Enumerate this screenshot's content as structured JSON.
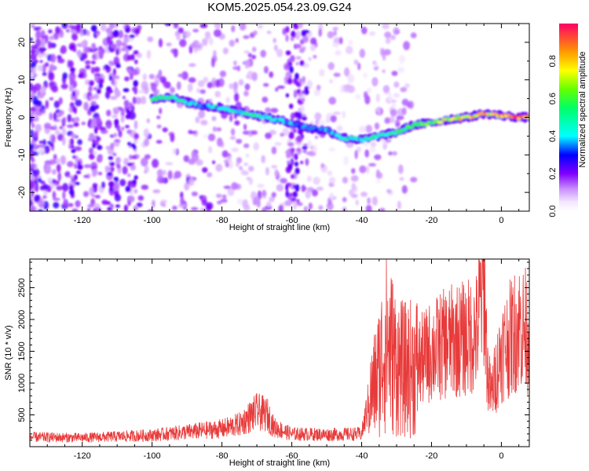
{
  "title": "KOM5.2025.054.23.09.G24",
  "chart_data": [
    {
      "type": "heatmap",
      "xlabel": "Height of straight line (km)",
      "ylabel": "Frequency (Hz)",
      "xlim": [
        -135,
        8
      ],
      "ylim": [
        -25,
        25
      ],
      "xticks": [
        -120,
        -100,
        -80,
        -60,
        -40,
        -20,
        0
      ],
      "yticks": [
        -20,
        -10,
        0,
        10,
        20
      ],
      "colorbar": {
        "label": "Normalized spectral amplitude",
        "range": [
          0.0,
          1.0
        ],
        "ticks": [
          0.0,
          0.2,
          0.4,
          0.6,
          0.8
        ]
      },
      "ridge": {
        "x": [
          -100,
          -95,
          -90,
          -85,
          -80,
          -75,
          -70,
          -65,
          -60,
          -55,
          -50,
          -45,
          -40,
          -35,
          -30,
          -25,
          -20,
          -15,
          -10,
          -5,
          0,
          5,
          8
        ],
        "y": [
          5,
          5.5,
          4,
          3,
          2.5,
          1.5,
          0.5,
          -0.5,
          -1.5,
          -3,
          -3.5,
          -5.5,
          -6,
          -5,
          -4,
          -2,
          -1.5,
          -0.5,
          0,
          1,
          0.5,
          0,
          0
        ],
        "amplitude": [
          0.55,
          0.5,
          0.45,
          0.4,
          0.45,
          0.5,
          0.5,
          0.45,
          0.4,
          0.35,
          0.4,
          0.45,
          0.45,
          0.5,
          0.55,
          0.6,
          0.7,
          0.75,
          0.8,
          0.85,
          0.9,
          0.95,
          0.95
        ]
      }
    },
    {
      "type": "line",
      "xlabel": "Height of straight line (km)",
      "ylabel": "SNR (10 * v/v)",
      "xlim": [
        -135,
        8
      ],
      "ylim": [
        0,
        2950
      ],
      "xticks": [
        -120,
        -100,
        -80,
        -60,
        -40,
        -20,
        0
      ],
      "yticks": [
        500,
        1000,
        1500,
        2000,
        2500
      ],
      "series_color": "#e83a3a",
      "envelope": {
        "x": [
          -135,
          -120,
          -110,
          -100,
          -90,
          -80,
          -75,
          -70,
          -67,
          -65,
          -60,
          -50,
          -40,
          -38,
          -35,
          -33,
          -30,
          -28,
          -25,
          -22,
          -20,
          -15,
          -10,
          -7,
          -5,
          -4,
          -3,
          0,
          5,
          8
        ],
        "y": [
          150,
          140,
          160,
          180,
          230,
          280,
          350,
          550,
          500,
          300,
          200,
          190,
          200,
          700,
          1200,
          1700,
          1300,
          1200,
          1250,
          1400,
          1500,
          1650,
          1700,
          1800,
          2700,
          1200,
          800,
          1500,
          1900,
          1800
        ]
      }
    }
  ]
}
